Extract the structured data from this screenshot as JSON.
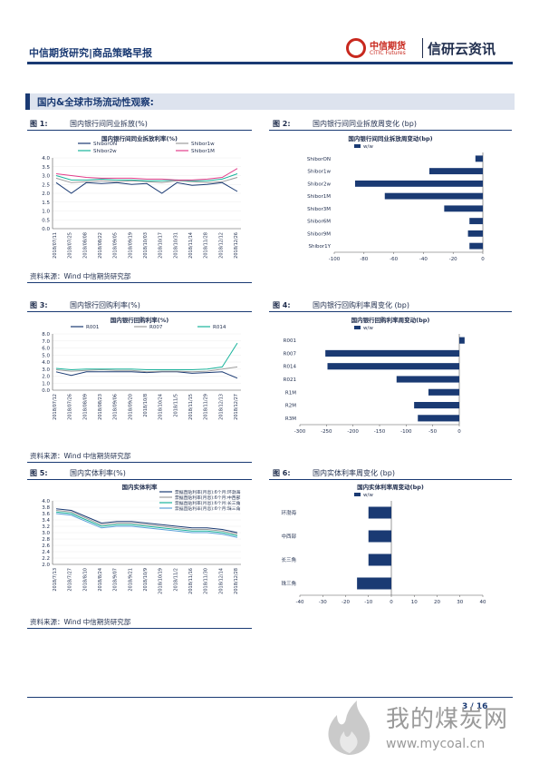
{
  "header": {
    "title": "中信期货研究|商品策略早报",
    "logo_cn": "中信期货",
    "logo_en": "CITIC Futures",
    "brand": "信研云资讯"
  },
  "section": {
    "title": "国内&全球市场流动性观察:"
  },
  "colors": {
    "navy": "#1a3a73",
    "teal": "#19b39b",
    "gray": "#9c9c9c",
    "pink": "#e23d8a",
    "red": "#c8281e"
  },
  "figures": [
    {
      "num": "图 1:",
      "caption": "国内银行间同业拆放(%)"
    },
    {
      "num": "图 2:",
      "caption": "国内银行间同业拆放周变化 (bp)"
    },
    {
      "num": "图 3:",
      "caption": "国内银行回购利率(%)"
    },
    {
      "num": "图 4:",
      "caption": "国内银行回购利率周变化 (bp)"
    },
    {
      "num": "图 5:",
      "caption": "国内实体利率(%)"
    },
    {
      "num": "图 6:",
      "caption": "国内实体利率周变化 (bp)"
    }
  ],
  "source": "资料来源：Wind 中信期货研究部",
  "footer": {
    "page": "3 / 16"
  },
  "watermark": {
    "text": "我的煤炭网",
    "url": "www.mycoal.cn"
  },
  "chart_data": [
    {
      "type": "line",
      "title": "国内银行间同业拆放利率(%)",
      "x": [
        "2018/07/11",
        "2018/07/25",
        "2018/08/08",
        "2018/08/22",
        "2018/09/05",
        "2018/09/19",
        "2018/10/03",
        "2018/10/17",
        "2018/10/31",
        "2018/11/14",
        "2018/11/28",
        "2018/12/12",
        "2018/12/26"
      ],
      "ylim": [
        0.0,
        4.0
      ],
      "yticks": [
        "0.0",
        "0.5",
        "1.0",
        "1.5",
        "2.0",
        "2.5",
        "3.0",
        "3.5",
        "4.0"
      ],
      "series": [
        {
          "name": "ShiborON",
          "color": "#1a3a73",
          "values": [
            2.6,
            2.0,
            2.6,
            2.55,
            2.6,
            2.5,
            2.55,
            2.0,
            2.6,
            2.45,
            2.5,
            2.6,
            2.1
          ]
        },
        {
          "name": "Shibor1w",
          "color": "#9c9c9c",
          "values": [
            2.85,
            2.6,
            2.65,
            2.7,
            2.65,
            2.7,
            2.65,
            2.6,
            2.7,
            2.65,
            2.6,
            2.65,
            2.9
          ]
        },
        {
          "name": "Shibor2w",
          "color": "#19b39b",
          "values": [
            3.0,
            2.75,
            2.75,
            2.8,
            2.75,
            2.75,
            2.7,
            2.7,
            2.75,
            2.7,
            2.7,
            2.8,
            3.1
          ]
        },
        {
          "name": "Shibor1M",
          "color": "#e23d8a",
          "values": [
            3.1,
            3.0,
            2.9,
            2.85,
            2.85,
            2.85,
            2.8,
            2.8,
            2.75,
            2.75,
            2.8,
            2.9,
            3.4
          ]
        }
      ]
    },
    {
      "type": "bar",
      "orientation": "horizontal",
      "title": "国内银行间同业拆放周变动(bp)",
      "legend": "w/w",
      "categories": [
        "ShiborON",
        "Shibor1w",
        "Shibor2w",
        "Shibor1M",
        "Shibor3M",
        "Shibor6M",
        "Shibor9M",
        "Shibor1Y"
      ],
      "values": [
        -5,
        -36,
        -86,
        -66,
        -26,
        -9,
        -10,
        -9
      ],
      "xlim": [
        -100,
        0
      ],
      "xticks": [
        "-100",
        "-80",
        "-60",
        "-40",
        "-20",
        "0"
      ]
    },
    {
      "type": "line",
      "title": "国内银行回购利率(%)",
      "x": [
        "2018/07/12",
        "2018/07/26",
        "2018/08/09",
        "2018/08/23",
        "2018/09/06",
        "2018/09/20",
        "2018/10/8",
        "2018/10/24",
        "2018/11/5",
        "2018/11/15",
        "2018/11/29",
        "2018/12/13",
        "2018/12/27"
      ],
      "ylim": [
        0.0,
        8.0
      ],
      "yticks": [
        "0.0",
        "1.0",
        "2.0",
        "3.0",
        "4.0",
        "5.0",
        "6.0",
        "7.0",
        "8.0"
      ],
      "series": [
        {
          "name": "R001",
          "color": "#1a3a73",
          "values": [
            2.6,
            2.1,
            2.6,
            2.6,
            2.6,
            2.6,
            2.5,
            2.6,
            2.6,
            2.4,
            2.5,
            2.6,
            1.7
          ]
        },
        {
          "name": "R007",
          "color": "#9c9c9c",
          "values": [
            2.9,
            2.7,
            2.8,
            2.9,
            2.8,
            2.8,
            2.6,
            2.7,
            2.7,
            2.6,
            2.7,
            3.0,
            3.3
          ]
        },
        {
          "name": "R014",
          "color": "#19b39b",
          "values": [
            3.1,
            2.9,
            3.0,
            3.0,
            3.0,
            3.0,
            2.9,
            2.9,
            2.9,
            2.9,
            3.0,
            3.3,
            6.7
          ]
        }
      ]
    },
    {
      "type": "bar",
      "orientation": "horizontal",
      "title": "国内银行回购利率周变动(bp)",
      "legend": "w/w",
      "categories": [
        "R001",
        "R007",
        "R014",
        "R021",
        "R1M",
        "R2M",
        "R3M"
      ],
      "values": [
        10,
        -252,
        -248,
        -118,
        -58,
        -85,
        -78
      ],
      "xlim": [
        -300,
        0
      ],
      "xticks": [
        "-300",
        "-250",
        "-200",
        "-150",
        "-100",
        "-50",
        "0"
      ]
    },
    {
      "type": "line",
      "title": "国内实体利率",
      "x": [
        "2018/7/13",
        "2018/7/27",
        "2018/8/10",
        "2018/8/24",
        "2018/9/07",
        "2018/9/21",
        "2018/10/9",
        "2018/10/19",
        "2018/11/2",
        "2018/11/16",
        "2018/11/30",
        "2018/12/14",
        "2018/12/28"
      ],
      "ylim": [
        2.0,
        4.0
      ],
      "yticks": [
        "2.0",
        "2.2",
        "2.4",
        "2.6",
        "2.8",
        "3.0",
        "3.2",
        "3.4",
        "3.6",
        "3.8",
        "4.0"
      ],
      "series": [
        {
          "name": "票据直贴利率(月息):6个月:环渤海",
          "color": "#1a3a73",
          "values": [
            3.75,
            3.7,
            3.5,
            3.3,
            3.35,
            3.35,
            3.3,
            3.25,
            3.2,
            3.15,
            3.15,
            3.1,
            3.0
          ]
        },
        {
          "name": "票据直贴利率(月息):6个月:中西部",
          "color": "#9c9c9c",
          "values": [
            3.7,
            3.65,
            3.45,
            3.25,
            3.3,
            3.3,
            3.25,
            3.2,
            3.15,
            3.1,
            3.1,
            3.05,
            2.95
          ]
        },
        {
          "name": "票据直贴利率(月息):6个月:长三角",
          "color": "#19b39b",
          "values": [
            3.65,
            3.6,
            3.4,
            3.2,
            3.25,
            3.25,
            3.2,
            3.15,
            3.1,
            3.05,
            3.05,
            3.0,
            2.9
          ]
        },
        {
          "name": "票据直贴利率(月息):6个月:珠三角",
          "color": "#5aa0d8",
          "values": [
            3.6,
            3.55,
            3.35,
            3.15,
            3.2,
            3.2,
            3.15,
            3.1,
            3.05,
            3.0,
            3.0,
            2.95,
            2.85
          ]
        }
      ]
    },
    {
      "type": "bar",
      "orientation": "horizontal",
      "title": "国内实体利率周变动(bp)",
      "legend": "w/w",
      "categories": [
        "环渤海",
        "中西部",
        "长三角",
        "珠三角"
      ],
      "values": [
        -10,
        -10,
        -10,
        -15
      ],
      "xlim": [
        -40,
        40
      ],
      "xticks": [
        "-40",
        "-30",
        "-20",
        "-10",
        "0",
        "10",
        "20",
        "30",
        "40"
      ]
    }
  ]
}
